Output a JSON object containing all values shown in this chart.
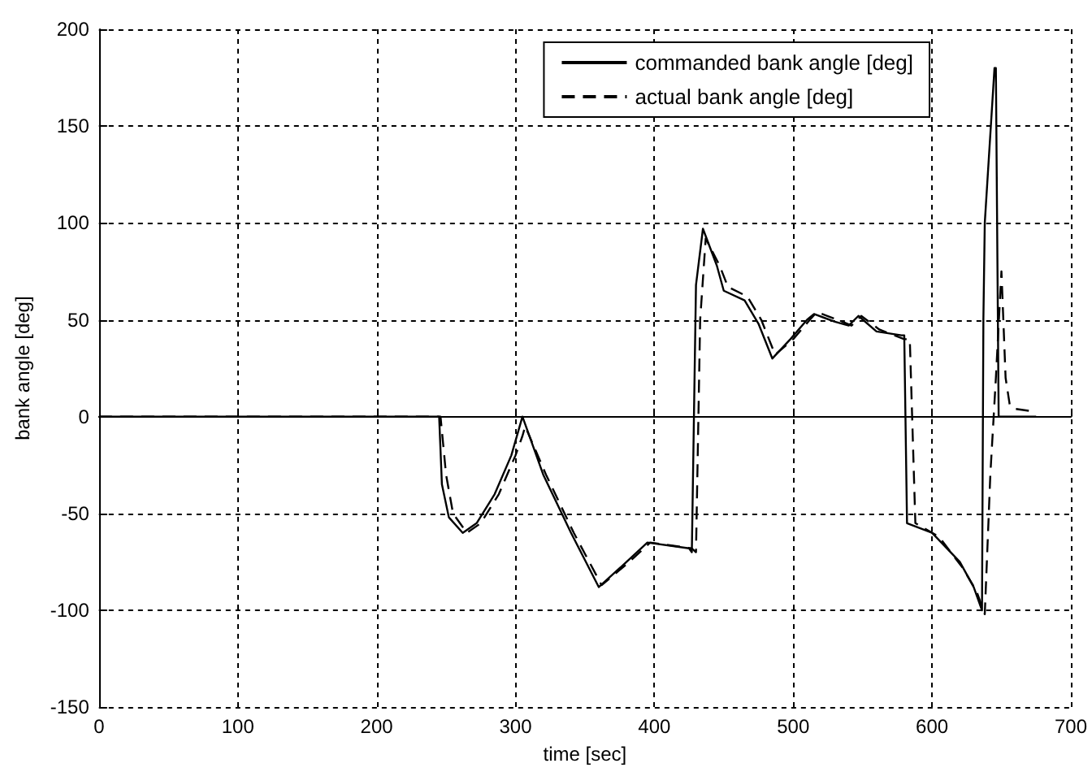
{
  "chart_data": {
    "type": "line",
    "xlabel": "time [sec]",
    "ylabel": "bank angle [deg]",
    "xlim": [
      0,
      700
    ],
    "xticks": [
      0,
      100,
      200,
      300,
      400,
      500,
      600,
      700
    ],
    "ylim": [
      -150,
      200
    ],
    "yticks": [
      -150,
      -100,
      -50,
      0,
      50,
      100,
      150,
      200
    ],
    "grid": true,
    "legend": "top right",
    "marker": "none",
    "series": [
      {
        "name": "commanded bank angle [deg]",
        "color": "#000000",
        "line_style": "solid",
        "x": [
          0,
          245,
          247,
          252,
          262,
          272,
          285,
          297,
          303,
          305,
          320,
          340,
          360,
          380,
          395,
          425,
          427,
          430,
          435,
          445,
          450,
          465,
          475,
          485,
          498,
          510,
          515,
          530,
          540,
          547,
          560,
          578,
          580,
          582,
          600,
          620,
          630,
          636,
          637,
          638,
          645,
          646,
          648,
          675
        ],
        "values": [
          0,
          0,
          -35,
          -52,
          -60,
          -55,
          -40,
          -20,
          -5,
          0,
          -30,
          -60,
          -88,
          -75,
          -65,
          -68,
          -70,
          68,
          97,
          78,
          65,
          60,
          48,
          30,
          40,
          50,
          53,
          49,
          47,
          52,
          44,
          42,
          42,
          -55,
          -60,
          -75,
          -88,
          -100,
          50,
          100,
          180,
          180,
          0,
          0
        ]
      },
      {
        "name": "actual bank angle [deg]",
        "color": "#000000",
        "line_style": "dashed",
        "x": [
          0,
          246,
          250,
          255,
          265,
          275,
          288,
          300,
          305,
          307,
          322,
          342,
          362,
          382,
          397,
          427,
          430,
          433,
          437,
          447,
          453,
          467,
          477,
          487,
          500,
          512,
          517,
          532,
          542,
          549,
          562,
          580,
          584,
          588,
          605,
          622,
          632,
          638,
          642,
          646,
          650,
          653,
          656,
          660,
          670
        ],
        "values": [
          0,
          0,
          -30,
          -50,
          -60,
          -55,
          -40,
          -20,
          -10,
          -5,
          -30,
          -60,
          -87,
          -75,
          -65,
          -68,
          -70,
          50,
          92,
          78,
          67,
          62,
          50,
          32,
          40,
          50,
          54,
          50,
          47,
          52,
          45,
          40,
          40,
          -55,
          -62,
          -78,
          -90,
          -102,
          -30,
          20,
          75,
          20,
          6,
          4,
          3
        ]
      }
    ]
  }
}
